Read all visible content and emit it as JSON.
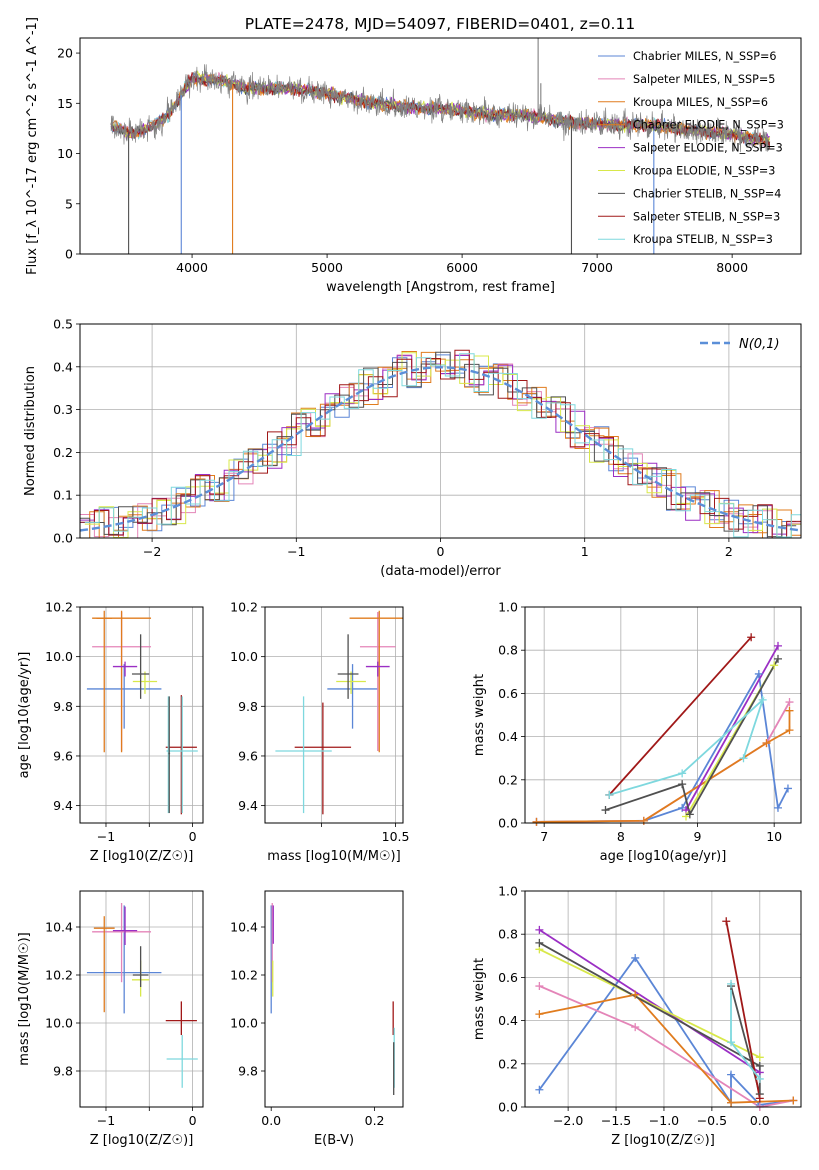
{
  "figure_title": "PLATE=2478, MJD=54097, FIBERID=0401, z=0.11",
  "colors": {
    "Chabrier MILES": "#5b86d6",
    "Salpeter MILES": "#e485b8",
    "Kroupa MILES": "#e07c1e",
    "Chabrier ELODIE": "#e07c1e",
    "Salpeter ELODIE": "#9b2fc4",
    "Kroupa ELODIE": "#d8e84a",
    "Chabrier STELIB": "#505050",
    "Salpeter STELIB": "#a01818",
    "Kroupa STELIB": "#7ed8de",
    "gauss": "#5b8fd8",
    "grid": "#b0b0b0",
    "data": "#808080"
  },
  "legend": {
    "spectrum": [
      "Chabrier MILES, N_SSP=6",
      "Salpeter MILES, N_SSP=5",
      "Kroupa MILES, N_SSP=6",
      "Chabrier ELODIE, N_SSP=3",
      "Salpeter ELODIE, N_SSP=3",
      "Kroupa ELODIE, N_SSP=3",
      "Chabrier STELIB, N_SSP=4",
      "Salpeter STELIB, N_SSP=3",
      "Kroupa STELIB, N_SSP=3"
    ],
    "residual": "N(0,1)"
  },
  "chart_data": [
    {
      "id": "spectrum",
      "type": "line",
      "xlabel": "wavelength [Angstrom, rest frame]",
      "ylabel": "Flux [f_λ 10^-17 erg cm^-2 s^-1 A^-1]",
      "xlim": [
        3170,
        8510
      ],
      "ylim": [
        0,
        21.5
      ],
      "xticks": [
        4000,
        5000,
        6000,
        7000,
        8000
      ],
      "yticks": [
        0,
        5,
        10,
        15,
        20
      ],
      "grid": false,
      "legend_position": "right",
      "continuum": [
        [
          3400,
          12.8
        ],
        [
          3550,
          12.0
        ],
        [
          3700,
          12.6
        ],
        [
          3800,
          13.5
        ],
        [
          3900,
          15.4
        ],
        [
          4000,
          17.5
        ],
        [
          4200,
          17.3
        ],
        [
          4400,
          16.5
        ],
        [
          4600,
          16.5
        ],
        [
          4800,
          16.4
        ],
        [
          5000,
          16.0
        ],
        [
          5300,
          15.1
        ],
        [
          5600,
          14.6
        ],
        [
          5900,
          14.4
        ],
        [
          6200,
          13.9
        ],
        [
          6500,
          13.8
        ],
        [
          6800,
          13.1
        ],
        [
          7100,
          12.9
        ],
        [
          7400,
          12.8
        ],
        [
          7700,
          12.3
        ],
        [
          8000,
          11.9
        ],
        [
          8280,
          11.2
        ]
      ],
      "features": [
        {
          "name": "emission",
          "x": 6563,
          "y": 21.5
        },
        {
          "name": "emission",
          "x": 6583,
          "y": 17.0
        },
        {
          "name": "drop",
          "x": 3530,
          "y": 0
        },
        {
          "name": "drop",
          "x": 3920,
          "y": 0
        },
        {
          "name": "drop",
          "x": 4300,
          "y": 0
        },
        {
          "name": "drop",
          "x": 6810,
          "y": 0
        },
        {
          "name": "drop",
          "x": 7420,
          "y": 0
        }
      ]
    },
    {
      "id": "residuals",
      "type": "step",
      "xlabel": "(data-model)/error",
      "ylabel": "Normed distribution",
      "xlim": [
        -2.5,
        2.5
      ],
      "ylim": [
        0,
        0.5
      ],
      "xticks": [
        -2,
        -1,
        0,
        1,
        2
      ],
      "yticks": [
        0.0,
        0.1,
        0.2,
        0.3,
        0.4,
        0.5
      ],
      "grid": true,
      "legend_position": "upper right",
      "reference": {
        "type": "gaussian",
        "mu": 0,
        "sigma": 1
      },
      "bin_width": 0.1,
      "noise": [
        0.018,
        -0.031,
        0.042,
        -0.012,
        0.027,
        -0.039,
        0.009,
        0.035,
        -0.022,
        0.016,
        -0.045,
        0.031,
        -0.008,
        0.021,
        -0.027,
        0.044,
        -0.016,
        0.012,
        -0.034,
        0.025,
        0.005,
        -0.019,
        0.038,
        -0.041,
        0.014,
        0.029,
        -0.011,
        -0.036,
        0.022,
        0.041,
        -0.024,
        0.007,
        -0.015,
        0.033,
        -0.028,
        0.011,
        0.046,
        -0.033,
        0.019,
        -0.006,
        0.024,
        -0.043,
        0.028,
        0.013,
        -0.021,
        0.036,
        -0.009,
        0.003,
        -0.037,
        0.017,
        0.039,
        -0.025,
        0.008,
        -0.014,
        0.032,
        -0.029,
        0.015,
        0.043,
        -0.018,
        0.006
      ]
    },
    {
      "id": "age-Z",
      "type": "errorbar",
      "xlabel": "Z [log10(Z/Z☉)]",
      "ylabel": "age [log10(age/yr)]",
      "xlim": [
        -1.3,
        0.12
      ],
      "ylim": [
        9.33,
        10.2
      ],
      "xticks": [
        -1,
        -0.5,
        0
      ],
      "yticks": [
        9.4,
        9.6,
        9.8,
        10.0,
        10.2
      ],
      "xticklabels": [
        "−1",
        "",
        "0"
      ],
      "grid": true,
      "points": [
        {
          "model": "Chabrier MILES",
          "x": -0.79,
          "xerr": 0.43,
          "y": 9.87,
          "yerr": [
            0.16,
            0.1
          ]
        },
        {
          "model": "Salpeter MILES",
          "x": -0.82,
          "xerr": 0.34,
          "y": 10.04,
          "yerr": [
            0.42,
            0.14
          ]
        },
        {
          "model": "Kroupa MILES",
          "x": -0.82,
          "xerr": 0.34,
          "y": 10.155,
          "yerr": [
            0.54,
            0.03
          ]
        },
        {
          "model": "Chabrier ELODIE",
          "x": -1.02,
          "xerr": 0.09,
          "y": 10.155,
          "yerr": [
            0.54,
            0.03
          ]
        },
        {
          "model": "Salpeter ELODIE",
          "x": -0.78,
          "xerr": 0.14,
          "y": 9.96,
          "yerr": [
            0.04,
            0.02
          ]
        },
        {
          "model": "Kroupa ELODIE",
          "x": -0.55,
          "xerr": 0.14,
          "y": 9.9,
          "yerr": [
            0.05,
            0.04
          ]
        },
        {
          "model": "Chabrier STELIB",
          "x": -0.6,
          "xerr": 0.1,
          "y": 9.93,
          "yerr": [
            0.1,
            0.16
          ]
        },
        {
          "model": "Salpeter STELIB",
          "x": -0.13,
          "xerr": 0.18,
          "y": 9.635,
          "yerr": [
            0.27,
            0.21
          ]
        },
        {
          "model": "Kroupa STELIB",
          "x": -0.12,
          "xerr": 0.18,
          "y": 9.62,
          "yerr": [
            0.25,
            0.22
          ]
        },
        {
          "model": "Kroupa STELIB",
          "x": -0.28,
          "xerr": 0.02,
          "y": 9.62,
          "yerr": [
            0.25,
            0.22
          ]
        },
        {
          "model": "Chabrier STELIB",
          "x": -0.27,
          "xerr": 0.01,
          "y": 9.61,
          "yerr": [
            0.24,
            0.23
          ]
        }
      ]
    },
    {
      "id": "age-mass",
      "type": "errorbar",
      "xlabel": "mass [log10(M/M☉)]",
      "ylabel": "",
      "xlim": [
        9.62,
        10.55
      ],
      "ylim": [
        9.33,
        10.2
      ],
      "xticks": [
        10.0,
        10.5
      ],
      "yticks": [
        9.4,
        9.6,
        9.8,
        10.0,
        10.2
      ],
      "xticklabels": [
        "",
        "10.5"
      ],
      "grid": true,
      "points": [
        {
          "model": "Chabrier MILES",
          "x": 10.21,
          "xerr": 0.17,
          "y": 9.87,
          "yerr": [
            0.16,
            0.1
          ]
        },
        {
          "model": "Salpeter MILES",
          "x": 10.38,
          "xerr": 0.12,
          "y": 10.04,
          "yerr": [
            0.42,
            0.14
          ]
        },
        {
          "model": "Kroupa MILES",
          "x": 10.39,
          "xerr": 0.2,
          "y": 10.155,
          "yerr": [
            0.54,
            0.03
          ]
        },
        {
          "model": "Salpeter ELODIE",
          "x": 10.38,
          "xerr": 0.08,
          "y": 9.96,
          "yerr": [
            0.04,
            0.02
          ]
        },
        {
          "model": "Kroupa ELODIE",
          "x": 10.2,
          "xerr": 0.1,
          "y": 9.9,
          "yerr": [
            0.05,
            0.04
          ]
        },
        {
          "model": "Chabrier STELIB",
          "x": 10.18,
          "xerr": 0.07,
          "y": 9.93,
          "yerr": [
            0.1,
            0.16
          ]
        },
        {
          "model": "Salpeter STELIB",
          "x": 10.01,
          "xerr": 0.19,
          "y": 9.635,
          "yerr": [
            0.27,
            0.18
          ]
        },
        {
          "model": "Kroupa STELIB",
          "x": 9.88,
          "xerr": 0.19,
          "y": 9.62,
          "yerr": [
            0.25,
            0.22
          ]
        }
      ]
    },
    {
      "id": "weight-age",
      "type": "line-markers",
      "xlabel": "age [log10(age/yr)]",
      "ylabel": "mass weight",
      "xlim": [
        6.75,
        10.35
      ],
      "ylim": [
        0,
        1
      ],
      "xticks": [
        7,
        8,
        9,
        10
      ],
      "yticks": [
        0.0,
        0.2,
        0.4,
        0.6,
        0.8,
        1.0
      ],
      "grid": true,
      "series": [
        {
          "model": "Chabrier MILES",
          "points": [
            [
              6.9,
              0.005
            ],
            [
              8.3,
              0.01
            ],
            [
              8.8,
              0.07
            ],
            [
              9.8,
              0.69
            ],
            [
              10.05,
              0.07
            ],
            [
              10.18,
              0.16
            ]
          ]
        },
        {
          "model": "Salpeter MILES",
          "points": [
            [
              6.9,
              0.005
            ],
            [
              8.3,
              0.01
            ],
            [
              9.9,
              0.37
            ],
            [
              10.2,
              0.56
            ]
          ]
        },
        {
          "model": "Kroupa MILES",
          "points": [
            [
              6.9,
              0.005
            ],
            [
              8.3,
              0.01
            ],
            [
              9.9,
              0.37
            ],
            [
              10.2,
              0.43
            ],
            [
              10.2,
              0.52
            ]
          ]
        },
        {
          "model": "Salpeter ELODIE",
          "points": [
            [
              8.85,
              0.06
            ],
            [
              10.05,
              0.82
            ]
          ]
        },
        {
          "model": "Kroupa ELODIE",
          "points": [
            [
              8.85,
              0.03
            ],
            [
              10.0,
              0.73
            ]
          ]
        },
        {
          "model": "Chabrier STELIB",
          "points": [
            [
              7.8,
              0.06
            ],
            [
              8.8,
              0.18
            ],
            [
              8.9,
              0.04
            ],
            [
              10.05,
              0.76
            ]
          ]
        },
        {
          "model": "Salpeter STELIB",
          "points": [
            [
              7.85,
              0.13
            ],
            [
              9.7,
              0.86
            ]
          ]
        },
        {
          "model": "Kroupa STELIB",
          "points": [
            [
              7.85,
              0.13
            ],
            [
              8.8,
              0.23
            ],
            [
              9.85,
              0.57
            ],
            [
              9.6,
              0.3
            ]
          ]
        }
      ]
    },
    {
      "id": "mass-Z",
      "type": "errorbar",
      "xlabel": "Z [log10(Z/Z☉)]",
      "ylabel": "mass [log10(M/M☉)]",
      "xlim": [
        -1.3,
        0.12
      ],
      "ylim": [
        9.65,
        10.55
      ],
      "xticks": [
        -1,
        -0.5,
        0
      ],
      "yticks": [
        9.8,
        10.0,
        10.2,
        10.4
      ],
      "xticklabels": [
        "−1",
        "",
        "0"
      ],
      "grid": true,
      "points": [
        {
          "model": "Chabrier MILES",
          "x": -0.79,
          "xerr": 0.43,
          "y": 10.21,
          "yerr": [
            0.17,
            0.28
          ]
        },
        {
          "model": "Salpeter MILES",
          "x": -0.82,
          "xerr": 0.34,
          "y": 10.38,
          "yerr": [
            0.21,
            0.12
          ]
        },
        {
          "model": "Kroupa MILES",
          "x": -1.02,
          "xerr": 0.12,
          "y": 10.395,
          "yerr": [
            0.35,
            0.05
          ]
        },
        {
          "model": "Salpeter ELODIE",
          "x": -0.78,
          "xerr": 0.14,
          "y": 10.385,
          "yerr": [
            0.06,
            0.1
          ]
        },
        {
          "model": "Kroupa ELODIE",
          "x": -0.6,
          "xerr": 0.1,
          "y": 10.18,
          "yerr": [
            0.07,
            0.08
          ]
        },
        {
          "model": "Chabrier STELIB",
          "x": -0.6,
          "xerr": 0.09,
          "y": 10.2,
          "yerr": [
            0.05,
            0.12
          ]
        },
        {
          "model": "Salpeter STELIB",
          "x": -0.13,
          "xerr": 0.18,
          "y": 10.01,
          "yerr": [
            0.06,
            0.08
          ]
        },
        {
          "model": "Kroupa STELIB",
          "x": -0.12,
          "xerr": 0.18,
          "y": 9.85,
          "yerr": [
            0.12,
            0.1
          ]
        }
      ]
    },
    {
      "id": "mass-EBV",
      "type": "errorbar",
      "xlabel": "E(B-V)",
      "ylabel": "",
      "xlim": [
        -0.012,
        0.255
      ],
      "ylim": [
        9.65,
        10.55
      ],
      "xticks": [
        0.0,
        0.2
      ],
      "yticks": [
        9.8,
        10.0,
        10.2,
        10.4
      ],
      "grid": false,
      "points": [
        {
          "model": "Chabrier MILES",
          "x": 0.0,
          "xerr": 0.0,
          "y": 10.21,
          "yerr": [
            0.17,
            0.28
          ]
        },
        {
          "model": "Salpeter MILES",
          "x": 0.002,
          "xerr": 0.0,
          "y": 10.38,
          "yerr": [
            0.21,
            0.12
          ]
        },
        {
          "model": "Salpeter ELODIE",
          "x": 0.004,
          "xerr": 0.0,
          "y": 10.39,
          "yerr": [
            0.06,
            0.1
          ]
        },
        {
          "model": "Kroupa ELODIE",
          "x": 0.003,
          "xerr": 0.0,
          "y": 10.18,
          "yerr": [
            0.07,
            0.08
          ]
        },
        {
          "model": "Salpeter STELIB",
          "x": 0.236,
          "xerr": 0.0,
          "y": 10.01,
          "yerr": [
            0.06,
            0.08
          ]
        },
        {
          "model": "Kroupa STELIB",
          "x": 0.238,
          "xerr": 0.0,
          "y": 9.85,
          "yerr": [
            0.12,
            0.13
          ]
        },
        {
          "model": "Chabrier STELIB",
          "x": 0.237,
          "xerr": 0.0,
          "y": 9.8,
          "yerr": [
            0.1,
            0.12
          ]
        }
      ]
    },
    {
      "id": "weight-Z",
      "type": "line-markers",
      "xlabel": "Z [log10(Z/Z☉)]",
      "ylabel": "mass weight",
      "xlim": [
        -2.45,
        0.43
      ],
      "ylim": [
        0,
        1
      ],
      "xticks": [
        -2.0,
        -1.5,
        -1.0,
        -0.5,
        0.0
      ],
      "yticks": [
        0.0,
        0.2,
        0.4,
        0.6,
        0.8,
        1.0
      ],
      "grid": true,
      "series": [
        {
          "model": "Chabrier MILES",
          "points": [
            [
              -2.3,
              0.08
            ],
            [
              -1.3,
              0.69
            ],
            [
              -0.3,
              0.02
            ],
            [
              -0.3,
              0.15
            ],
            [
              0.0,
              0.01
            ],
            [
              0.35,
              0.03
            ]
          ]
        },
        {
          "model": "Salpeter MILES",
          "points": [
            [
              -2.3,
              0.56
            ],
            [
              -1.3,
              0.37
            ],
            [
              0.0,
              0.0
            ],
            [
              0.35,
              0.03
            ]
          ]
        },
        {
          "model": "Kroupa MILES",
          "points": [
            [
              -2.3,
              0.43
            ],
            [
              -1.3,
              0.52
            ],
            [
              -0.3,
              0.02
            ],
            [
              0.35,
              0.03
            ]
          ]
        },
        {
          "model": "Salpeter ELODIE",
          "points": [
            [
              -2.3,
              0.82
            ],
            [
              0.0,
              0.16
            ]
          ]
        },
        {
          "model": "Kroupa ELODIE",
          "points": [
            [
              -2.3,
              0.73
            ],
            [
              0.0,
              0.23
            ]
          ]
        },
        {
          "model": "Chabrier STELIB",
          "points": [
            [
              -2.3,
              0.76
            ],
            [
              0.0,
              0.19
            ],
            [
              0.0,
              0.06
            ],
            [
              -0.3,
              0.56
            ]
          ]
        },
        {
          "model": "Salpeter STELIB",
          "points": [
            [
              -0.35,
              0.86
            ],
            [
              0.0,
              0.04
            ]
          ]
        },
        {
          "model": "Kroupa STELIB",
          "points": [
            [
              -0.3,
              0.57
            ],
            [
              -0.3,
              0.3
            ],
            [
              0.0,
              0.13
            ]
          ]
        }
      ]
    }
  ]
}
